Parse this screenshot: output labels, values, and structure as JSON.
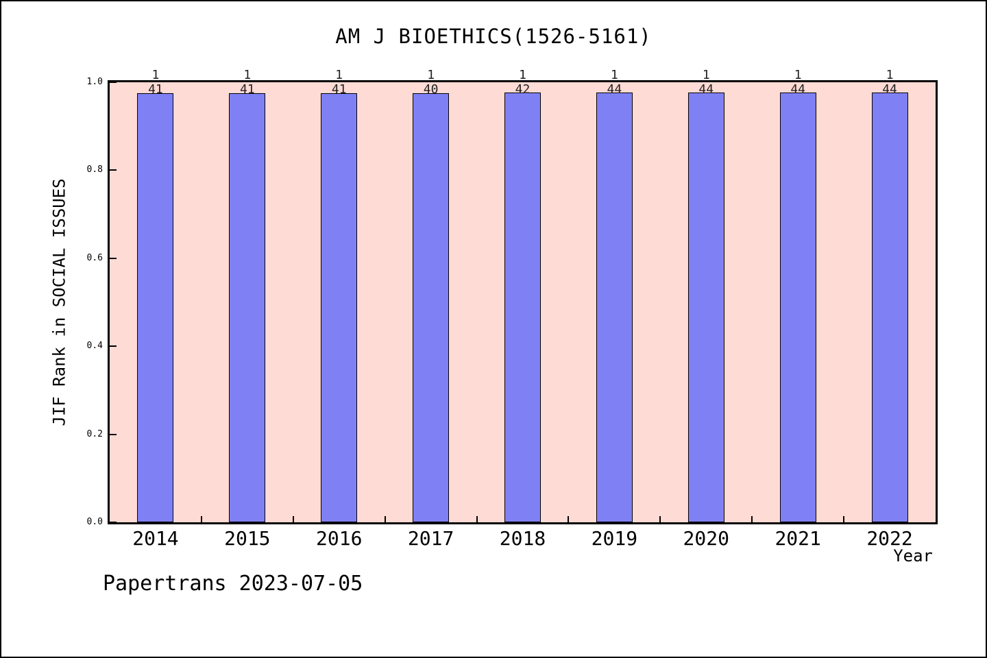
{
  "chart_data": {
    "type": "bar",
    "title": "AM J BIOETHICS(1526-5161)",
    "xlabel": "Year",
    "ylabel": "JIF Rank in SOCIAL ISSUES",
    "categories": [
      "2014",
      "2015",
      "2016",
      "2017",
      "2018",
      "2019",
      "2020",
      "2021",
      "2022"
    ],
    "ranks": [
      {
        "rank": 1,
        "total": 41
      },
      {
        "rank": 1,
        "total": 41
      },
      {
        "rank": 1,
        "total": 41
      },
      {
        "rank": 1,
        "total": 40
      },
      {
        "rank": 1,
        "total": 42
      },
      {
        "rank": 1,
        "total": 44
      },
      {
        "rank": 1,
        "total": 44
      },
      {
        "rank": 1,
        "total": 44
      },
      {
        "rank": 1,
        "total": 44
      }
    ],
    "values": [
      0.9756,
      0.9756,
      0.9756,
      0.975,
      0.9762,
      0.9773,
      0.9773,
      0.9773,
      0.9773
    ],
    "ylim": [
      0.0,
      1.0
    ],
    "yticks": [
      "0.0",
      "0.2",
      "0.4",
      "0.6",
      "0.8",
      "1.0"
    ],
    "grid": false,
    "legend_position": "none",
    "bar_color": "#8080f5",
    "bar_border_color": "#000000",
    "plot_background": "#ffdbd5",
    "annotation": "Papertrans 2023-07-05"
  }
}
